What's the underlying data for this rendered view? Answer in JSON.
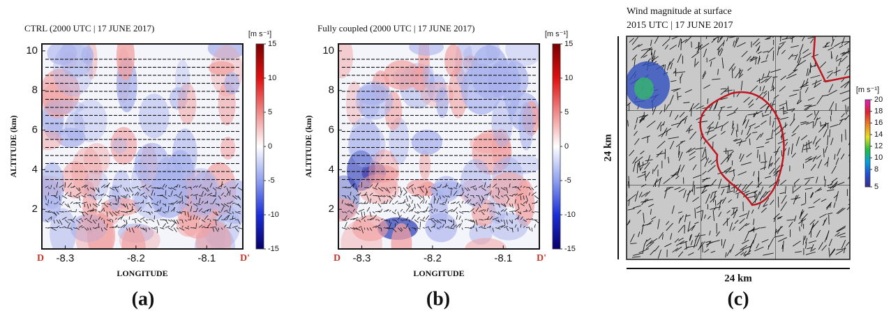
{
  "chart_data": [
    {
      "type": "heatmap",
      "title": "CTRL (2000 UTC | 17 JUNE 2017)",
      "xlabel": "LONGITUDE",
      "ylabel": "ALTITUDE (km)",
      "xlim": [
        -8.333,
        -8.049
      ],
      "ylim": [
        0,
        10.35
      ],
      "xticks": [
        -8.3,
        -8.2,
        -8.1
      ],
      "yticks": [
        2,
        4,
        6,
        8,
        10
      ],
      "endpoints": [
        "D",
        "D'"
      ],
      "colorbar": {
        "label": "[m s⁻¹]",
        "lim": [
          -15,
          15
        ],
        "ticks": [
          15,
          10,
          5,
          0,
          -5,
          -10,
          -15
        ],
        "colors": [
          "#08006a",
          "#1a2fd8",
          "#8fa0f0",
          "#ffffff",
          "#f08a8a",
          "#e01010",
          "#7a0000"
        ]
      },
      "panel_label": "(a)"
    },
    {
      "type": "heatmap",
      "title": "Fully coupled (2000 UTC | 17 JUNE 2017)",
      "xlabel": "LONGITUDE",
      "ylabel": "ALTITUDE (km)",
      "xlim": [
        -8.333,
        -8.049
      ],
      "ylim": [
        0,
        10.35
      ],
      "xticks": [
        -8.3,
        -8.2,
        -8.1
      ],
      "yticks": [
        2,
        4,
        6,
        8,
        10
      ],
      "endpoints": [
        "D",
        "D'"
      ],
      "colorbar": {
        "label": "[m s⁻¹]",
        "lim": [
          -15,
          15
        ],
        "ticks": [
          15,
          10,
          5,
          0,
          -5,
          -10,
          -15
        ],
        "colors": [
          "#08006a",
          "#1a2fd8",
          "#8fa0f0",
          "#ffffff",
          "#f08a8a",
          "#e01010",
          "#7a0000"
        ]
      },
      "panel_label": "(b)"
    },
    {
      "type": "map",
      "title": [
        "Wind magnitude at surface",
        "2015 UTC | 17 JUNE 2017"
      ],
      "xlabel": "24 km",
      "ylabel": "24 km",
      "colorbar": {
        "label": "[m s⁻¹]",
        "lim": [
          5,
          20
        ],
        "ticks": [
          20,
          18,
          16,
          14,
          12,
          10,
          8,
          5
        ],
        "colors": [
          "#3b2a8f",
          "#1f4fd6",
          "#00a0e0",
          "#20c040",
          "#e8e020",
          "#f08020",
          "#e02030",
          "#e020c0"
        ]
      },
      "panel_label": "(c)"
    }
  ]
}
